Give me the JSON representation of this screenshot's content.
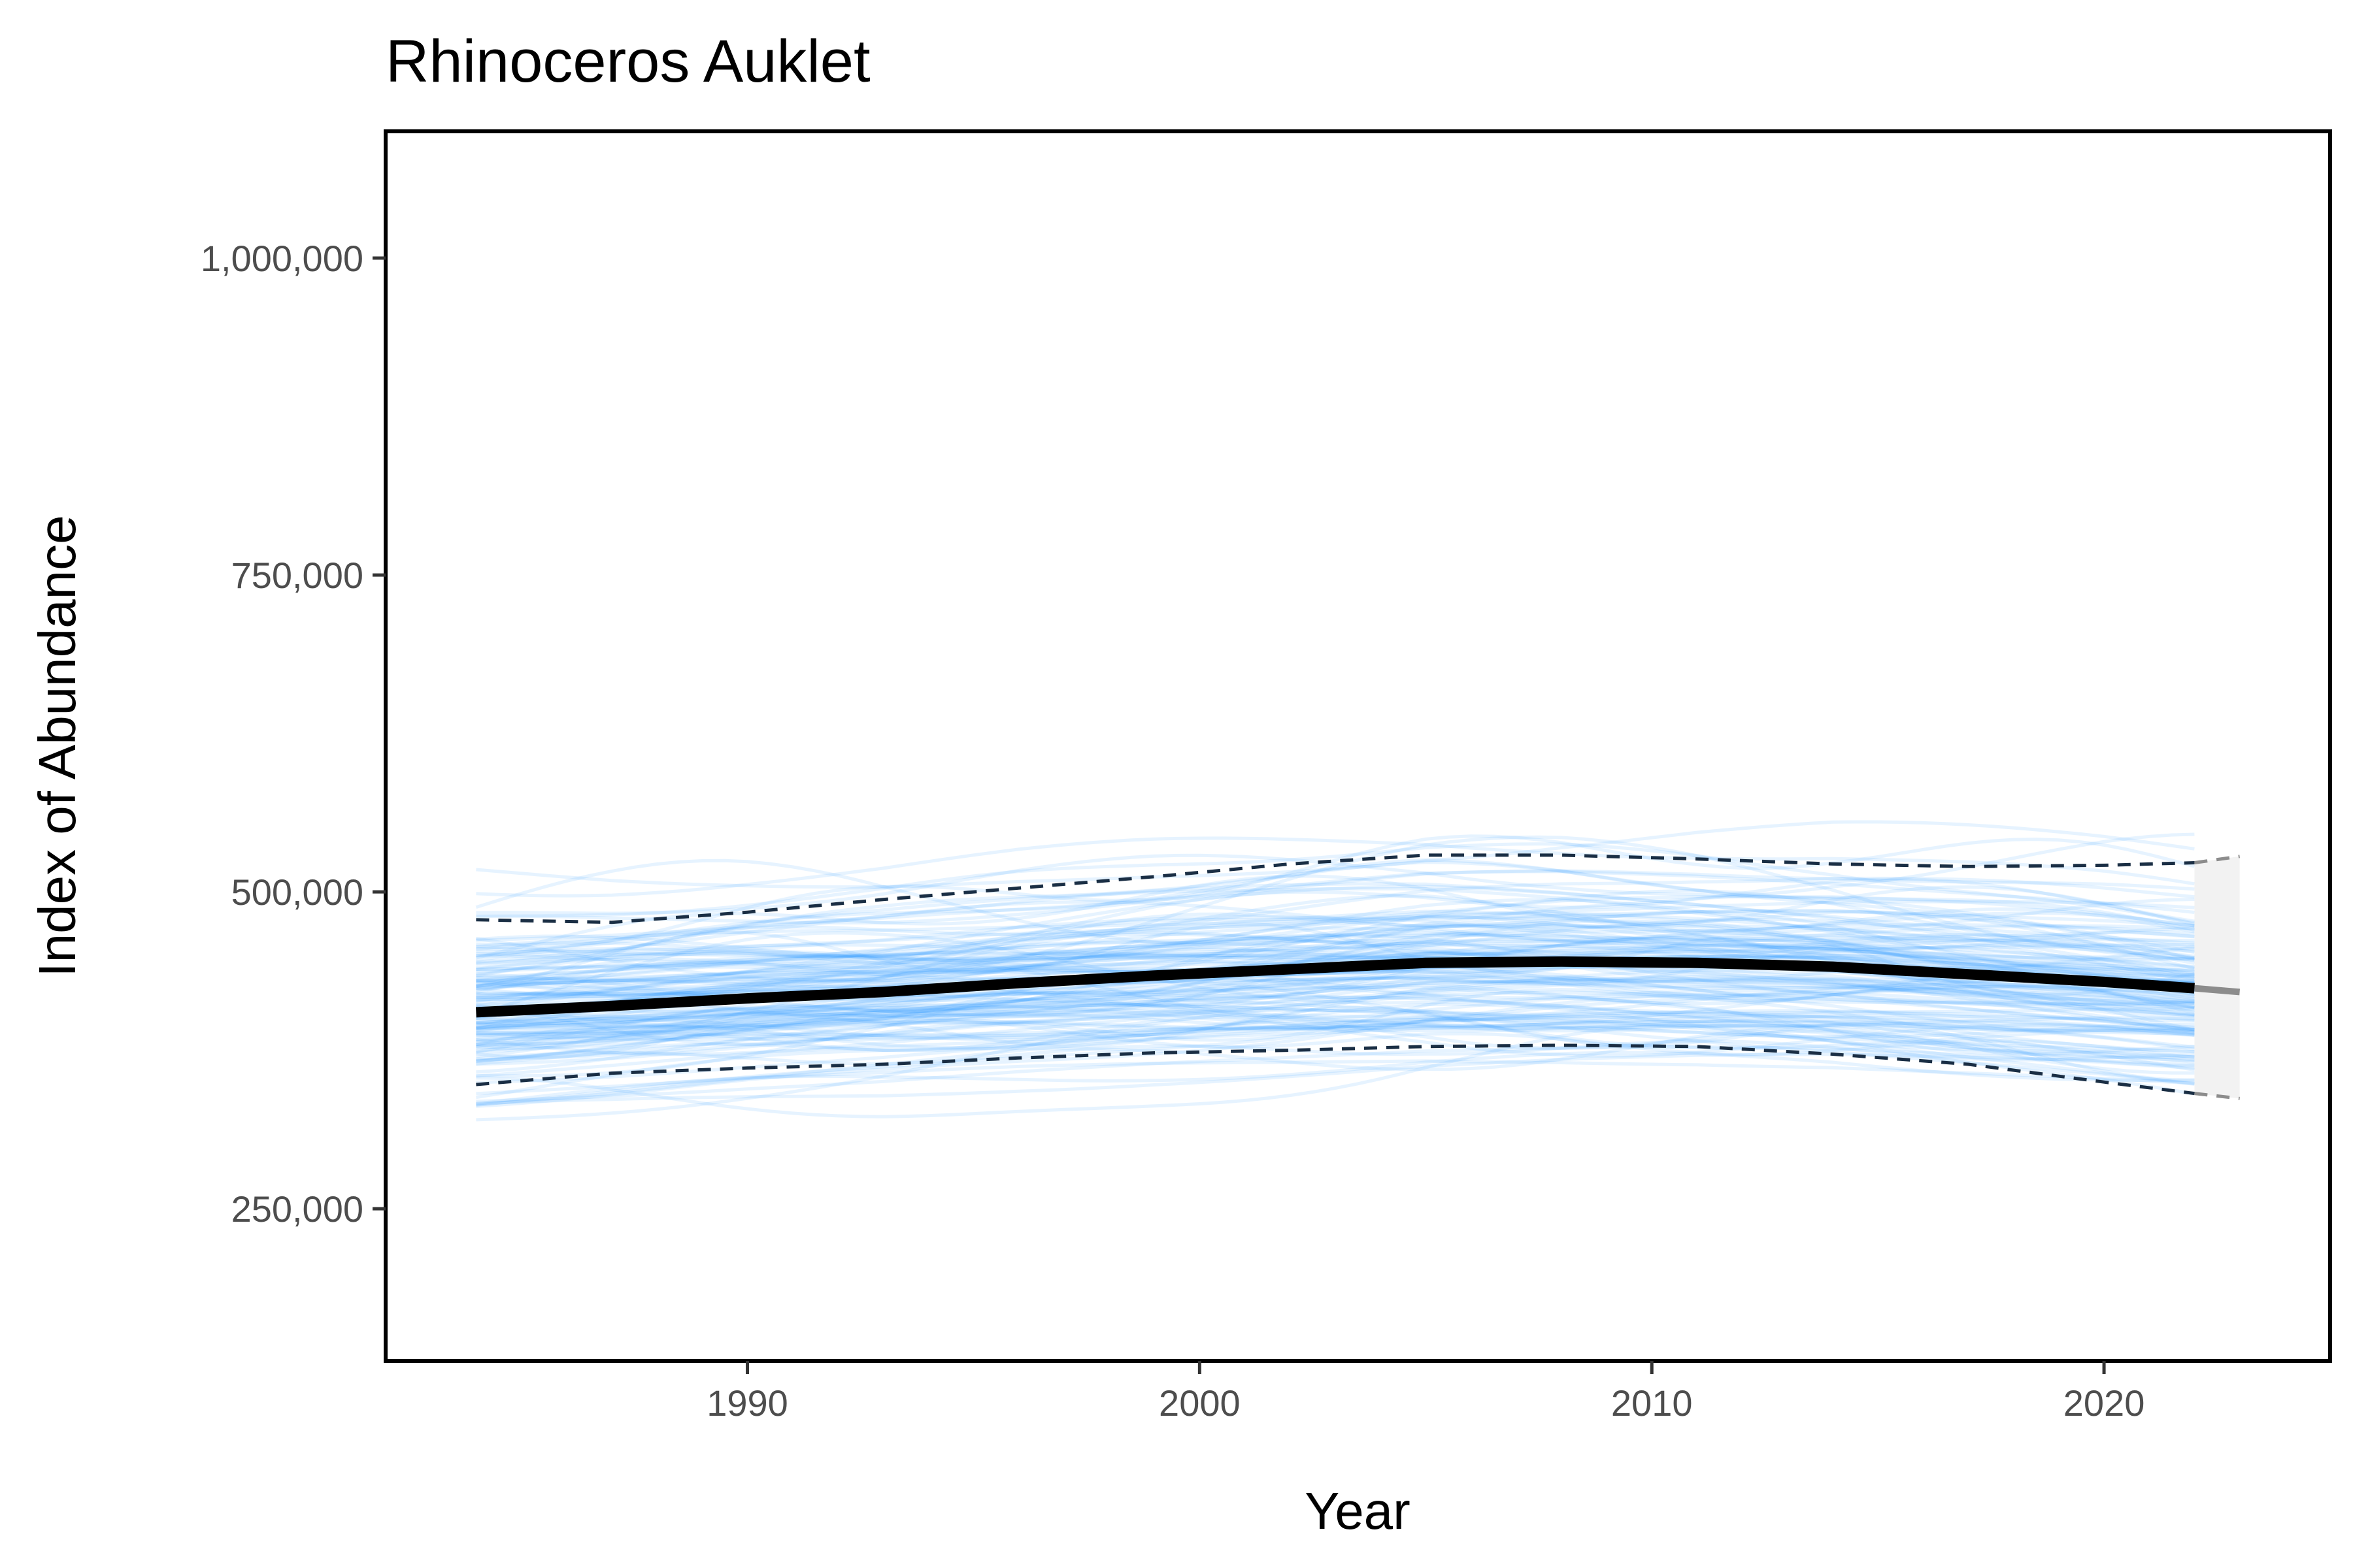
{
  "chart_data": {
    "type": "line",
    "title": "Rhinoceros Auklet",
    "xlabel": "Year",
    "ylabel": "Index of Abundance",
    "xlim": [
      1982,
      2025
    ],
    "ylim": [
      130000,
      1100000
    ],
    "x_ticks": [
      1990,
      2000,
      2010,
      2020
    ],
    "x_tick_labels": [
      "1990",
      "2000",
      "2010",
      "2020"
    ],
    "y_ticks": [
      250000,
      500000,
      750000,
      1000000
    ],
    "y_tick_labels": [
      "250,000",
      "500,000",
      "750,000",
      "1,000,000"
    ],
    "grid": false,
    "legend": "none",
    "colors": {
      "sample_lines": "#1E90FF",
      "median": "#000000",
      "interval": "#1a2e44",
      "projection_band": "#f2f2f2",
      "projection_line": "#8c8c8c"
    },
    "series": [
      {
        "name": "",
        "style": "solid-thick",
        "x": [
          1984,
          1987,
          1990,
          1993,
          1996,
          1999,
          2002,
          2005,
          2008,
          2011,
          2014,
          2017,
          2020,
          2022
        ],
        "values": [
          405000,
          410000,
          416000,
          421000,
          428000,
          434000,
          439000,
          444000,
          445000,
          444000,
          441000,
          435000,
          429000,
          424000
        ]
      },
      {
        "name": "",
        "style": "dashed",
        "x": [
          1984,
          1987,
          1990,
          1993,
          1996,
          1999,
          2002,
          2005,
          2008,
          2011,
          2014,
          2017,
          2020,
          2022
        ],
        "values": [
          478000,
          476000,
          484000,
          494000,
          503000,
          512000,
          522000,
          529000,
          529000,
          526000,
          522000,
          520000,
          521000,
          523000
        ]
      },
      {
        "name": "",
        "style": "dashed",
        "x": [
          1984,
          1987,
          1990,
          1993,
          1996,
          1999,
          2002,
          2005,
          2008,
          2011,
          2014,
          2017,
          2020,
          2022
        ],
        "values": [
          348000,
          357000,
          361000,
          364000,
          369000,
          373000,
          375000,
          378000,
          379000,
          378000,
          372000,
          364000,
          350000,
          341000
        ]
      }
    ],
    "projection": {
      "x": [
        2022,
        2023
      ],
      "median": [
        424000,
        421000
      ],
      "upper": [
        523000,
        528000
      ],
      "lower": [
        341000,
        337000
      ]
    },
    "sample_lines": {
      "count": 140,
      "x_start": 1984,
      "x_end": 2022,
      "approx_range": [
        315000,
        595000
      ]
    }
  }
}
